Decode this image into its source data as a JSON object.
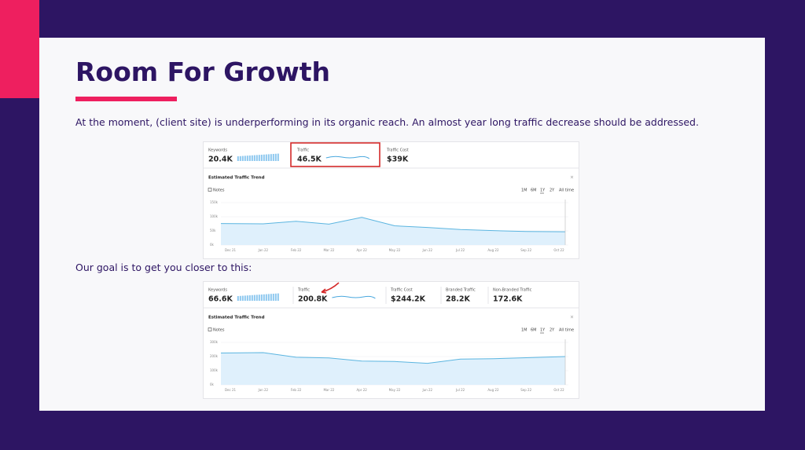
{
  "slide": {
    "title": "Room For Growth",
    "intro": "At the moment, (client site) is underperforming in its organic reach. An almost year long traffic decrease should be addressed.",
    "goal": "Our goal is to get you closer to this:"
  },
  "panels": [
    {
      "metrics": [
        {
          "label": "Keywords",
          "value": "20.4K"
        },
        {
          "label": "Traffic",
          "value": "46.5K"
        },
        {
          "label": "Traffic Cost",
          "value": "$39K"
        }
      ],
      "notes": "Notes",
      "ranges": [
        "1M",
        "6M",
        "1Y",
        "2Y",
        "All time"
      ],
      "chart_data": {
        "type": "line",
        "title": "Estimated Traffic Trend",
        "categories": [
          "Dec 21",
          "Jan 22",
          "Feb 22",
          "Mar 22",
          "Apr 22",
          "May 22",
          "Jun 22",
          "Jul 22",
          "Aug 22",
          "Sep 22",
          "Oct 22"
        ],
        "series": [
          {
            "color": "#5bb5e0",
            "values": [
              76000,
              75000,
              84000,
              74000,
              98000,
              68000,
              62000,
              55000,
              51000,
              48000,
              47000
            ]
          }
        ],
        "ylim": [
          0,
          150000
        ],
        "yticks": [
          {
            "value": 0,
            "label": "0k"
          },
          {
            "value": 50000,
            "label": "50k"
          },
          {
            "value": 100000,
            "label": "100k"
          },
          {
            "value": 150000,
            "label": "150k"
          }
        ]
      }
    },
    {
      "metrics": [
        {
          "label": "Keywords",
          "value": "66.6K"
        },
        {
          "label": "Traffic",
          "value": "200.8K"
        },
        {
          "label": "Traffic Cost",
          "value": "$244.2K"
        },
        {
          "label": "Branded Traffic",
          "value": "28.2K"
        },
        {
          "label": "Non-Branded Traffic",
          "value": "172.6K"
        }
      ],
      "notes": "Notes",
      "ranges": [
        "1M",
        "6M",
        "1Y",
        "2Y",
        "All time"
      ],
      "chart_data": {
        "type": "line",
        "title": "Estimated Traffic Trend",
        "categories": [
          "Dec 21",
          "Jan 22",
          "Feb 22",
          "Mar 22",
          "Apr 22",
          "May 22",
          "Jun 22",
          "Jul 22",
          "Aug 22",
          "Sep 22",
          "Oct 22"
        ],
        "series": [
          {
            "color": "#5bb5e0",
            "values": [
              225000,
              228000,
              195000,
              190000,
              168000,
              165000,
              152000,
              182000,
              185000,
              192000,
              200000
            ]
          }
        ],
        "ylim": [
          0,
          300000
        ],
        "yticks": [
          {
            "value": 0,
            "label": "0k"
          },
          {
            "value": 100000,
            "label": "100k"
          },
          {
            "value": 200000,
            "label": "200k"
          },
          {
            "value": 300000,
            "label": "300k"
          }
        ]
      }
    }
  ]
}
